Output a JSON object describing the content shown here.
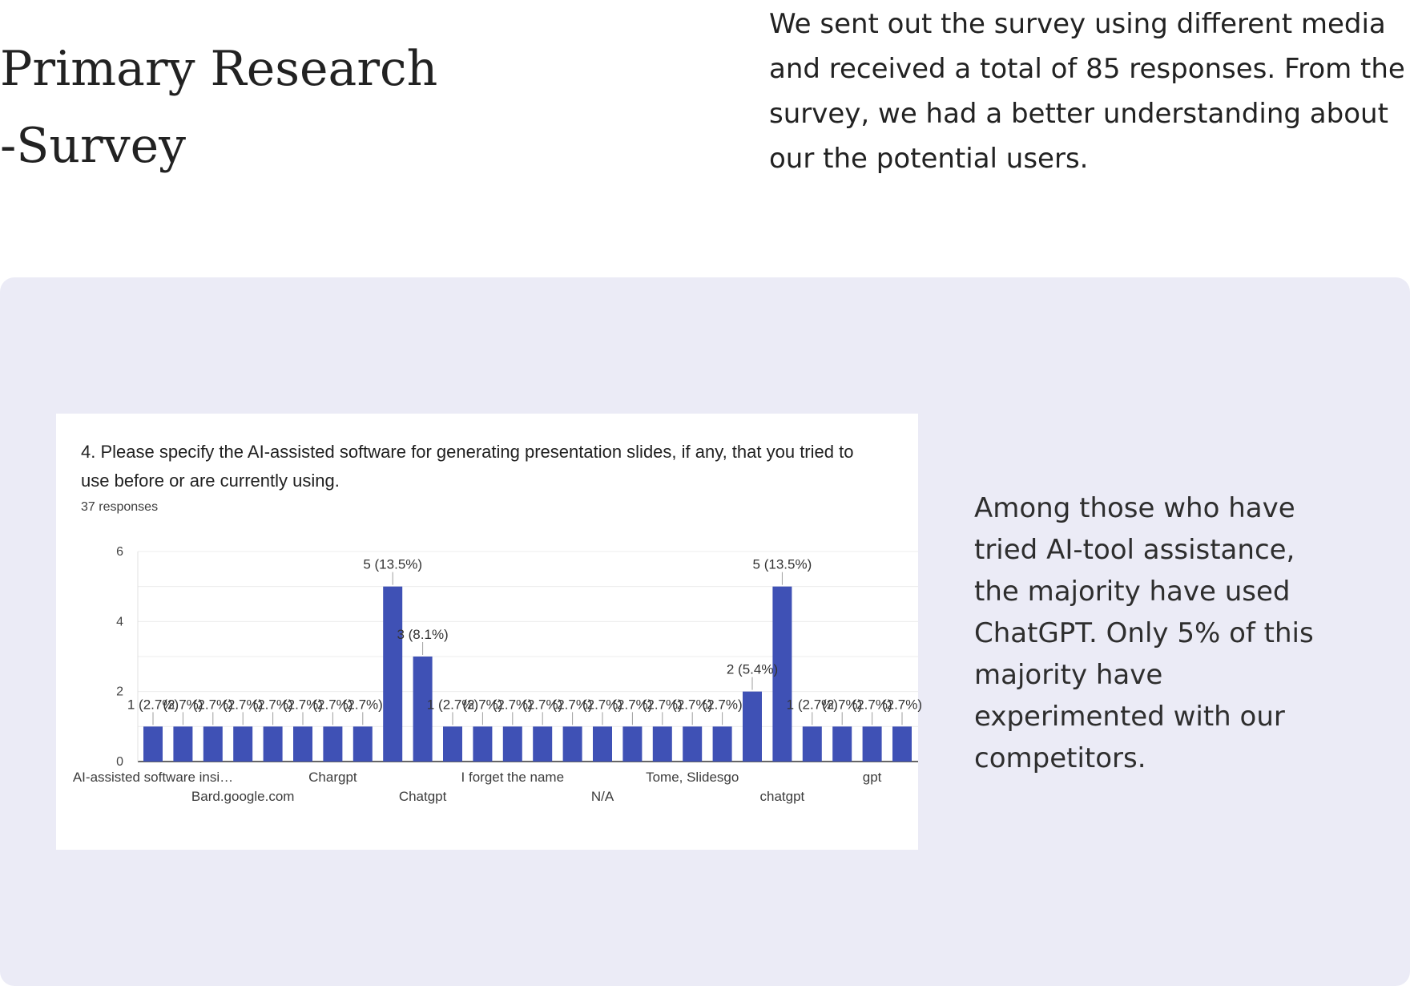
{
  "page": {
    "title_lines": [
      "Primary Research",
      "-Survey"
    ],
    "intro_lines": [
      "We sent out the survey using different media",
      "and received a total of 85 responses. From the",
      "survey, we had a better understanding about",
      "our the potential users."
    ],
    "finding_lines": [
      "Among those who have",
      "tried AI-tool assistance,",
      "the majority have used",
      "ChatGPT. Only 5% of this",
      "majority have",
      "experimented with our",
      "competitors."
    ]
  },
  "card": {
    "question_lines": [
      "4. Please specify the AI-assisted software for generating presentation slides, if any,  that you tried to",
      "use before or are currently using."
    ],
    "responses": "37 responses"
  },
  "chart_data": {
    "type": "bar",
    "ylim": [
      0,
      6
    ],
    "yticks": [
      "0",
      "2",
      "4",
      "6"
    ],
    "grid": true,
    "bar_color": "#3f51b5",
    "values": [
      1,
      1,
      1,
      1,
      1,
      1,
      1,
      1,
      5,
      3,
      1,
      1,
      1,
      1,
      1,
      1,
      1,
      1,
      1,
      1,
      2,
      5,
      1,
      1,
      1,
      1
    ],
    "data_labels": [
      "1 (2.7%)",
      "(2.7%)",
      "(2.7%)",
      "(2.7%)",
      "(2.7%)",
      "(2.7%)",
      "(2.7%)",
      "(2.7%)",
      "5 (13.5%)",
      "3 (8.1%)",
      "1 (2.7%)",
      "(2.7%)",
      "(2.7%)",
      "(2.7%)",
      "(2.7%)",
      "(2.7%)",
      "(2.7%)",
      "(2.7%)",
      "(2.7%)",
      "(2.7%)",
      "2 (5.4%)",
      "5 (13.5%)",
      "1 (2.7%)",
      "(2.7%)",
      "(2.7%)",
      "(2.7%)"
    ],
    "category_labels": [
      {
        "index": 0,
        "text": "AI-assisted software insi…",
        "row": 1
      },
      {
        "index": 3,
        "text": "Bard.google.com",
        "row": 2
      },
      {
        "index": 6,
        "text": "Chargpt",
        "row": 1
      },
      {
        "index": 9,
        "text": "Chatgpt",
        "row": 2
      },
      {
        "index": 12,
        "text": "I forget the name",
        "row": 1
      },
      {
        "index": 15,
        "text": "N/A",
        "row": 2
      },
      {
        "index": 18,
        "text": "Tome, Slidesgo",
        "row": 1
      },
      {
        "index": 21,
        "text": "chatgpt",
        "row": 2
      },
      {
        "index": 24,
        "text": "gpt",
        "row": 1
      }
    ]
  }
}
